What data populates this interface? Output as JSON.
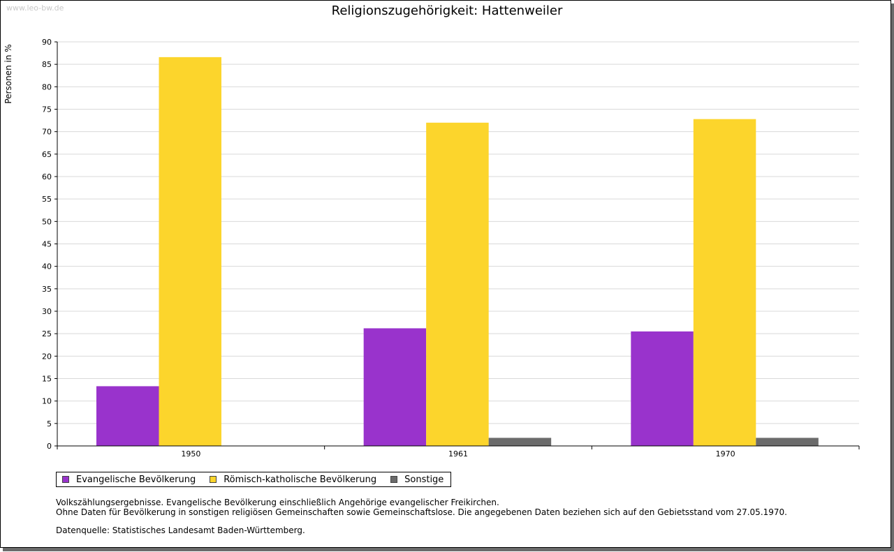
{
  "watermark": "www.leo-bw.de",
  "chart_data": {
    "type": "bar",
    "title": "Religionszugehörigkeit: Hattenweiler",
    "xlabel": "",
    "ylabel": "Personen in %",
    "ylim": [
      0,
      90
    ],
    "ytick_step": 5,
    "grid": true,
    "legend_position": "bottom-left",
    "categories": [
      "1950",
      "1961",
      "1970"
    ],
    "series": [
      {
        "name": "Evangelische Bevölkerung",
        "color": "#9933cc",
        "values": [
          13.3,
          26.2,
          25.5
        ]
      },
      {
        "name": "Römisch-katholische Bevölkerung",
        "color": "#fcd52c",
        "values": [
          86.6,
          72.0,
          72.8
        ]
      },
      {
        "name": "Sonstige",
        "color": "#6b6b6b",
        "values": [
          null,
          1.8,
          1.8
        ]
      }
    ]
  },
  "notes": {
    "line1": "Volkszählungsergebnisse. Evangelische Bevölkerung einschließlich Angehörige evangelischer Freikirchen.",
    "line2": "Ohne Daten für Bevölkerung in sonstigen religiösen Gemeinschaften sowie Gemeinschaftslose. Die angegebenen Daten beziehen sich auf den Gebietsstand vom 27.05.1970.",
    "source": "Datenquelle: Statistisches Landesamt Baden-Württemberg."
  }
}
